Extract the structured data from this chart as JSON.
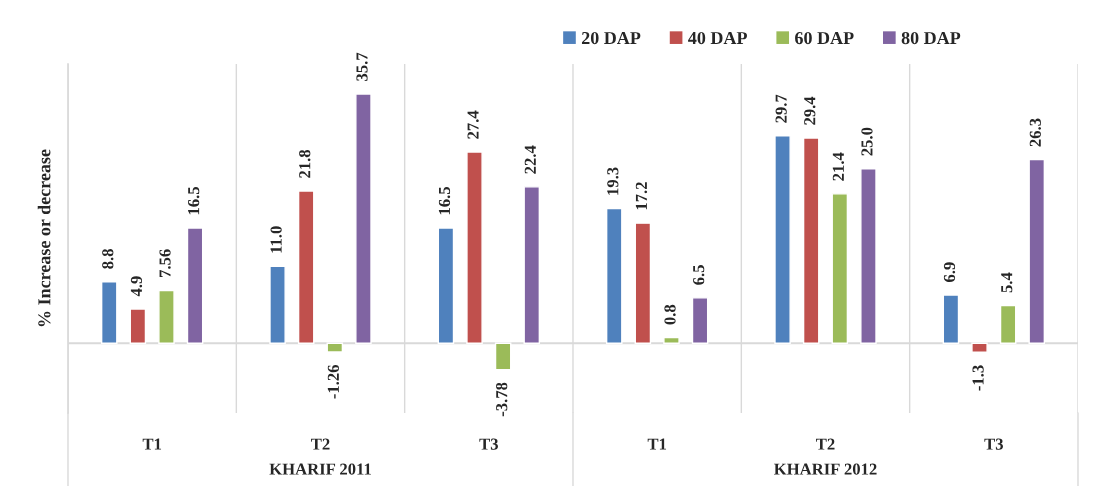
{
  "chart_data": {
    "type": "bar",
    "ylabel": "% Increase or decrease",
    "categories": [
      "T1",
      "T2",
      "T3",
      "T1",
      "T2",
      "T3"
    ],
    "annotations": [
      "KHARIF 2011",
      "KHARIF 2012"
    ],
    "series": [
      {
        "name": "20 DAP",
        "color": "#4f81bd",
        "values": [
          8.8,
          11.0,
          16.5,
          19.3,
          29.7,
          6.9
        ],
        "value_labels": [
          "8.8",
          "11.0",
          "16.5",
          "19.3",
          "29.7",
          "6.9"
        ]
      },
      {
        "name": "40 DAP",
        "color": "#c0504d",
        "values": [
          4.9,
          21.8,
          27.4,
          17.2,
          29.4,
          -1.3
        ],
        "value_labels": [
          "4.9",
          "21.8",
          "27.4",
          "17.2",
          "29.4",
          "-1.3"
        ]
      },
      {
        "name": "60 DAP",
        "color": "#9bbb59",
        "values": [
          7.56,
          -1.26,
          -3.78,
          0.8,
          21.4,
          5.4
        ],
        "value_labels": [
          "7.56",
          "-1.26",
          "-3.78",
          "0.8",
          "21.4",
          "5.4"
        ]
      },
      {
        "name": "80 DAP",
        "color": "#8064a2",
        "values": [
          16.5,
          35.7,
          22.4,
          6.5,
          25.0,
          26.3
        ],
        "value_labels": [
          "16.5",
          "35.7",
          "22.4",
          "6.5",
          "25.0",
          "26.3"
        ]
      }
    ],
    "ylim": [
      -10,
      40
    ],
    "grid": "x",
    "legend": "top right",
    "tick_labels": "x"
  }
}
